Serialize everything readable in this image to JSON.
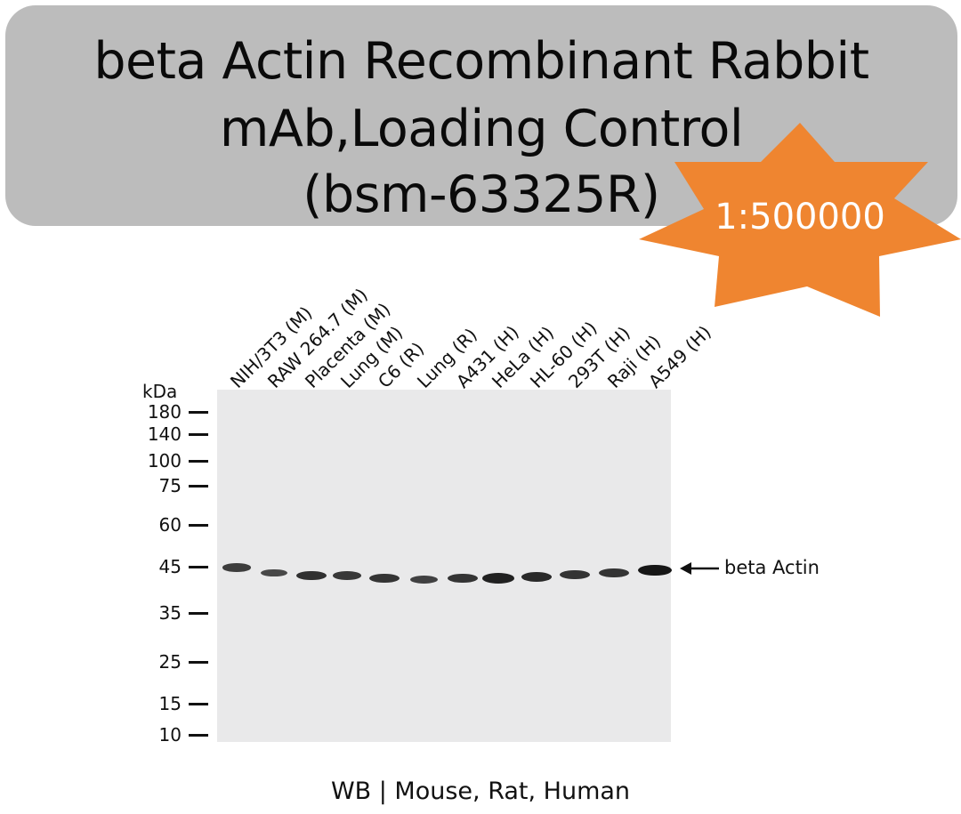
{
  "header": {
    "title_lines": [
      "beta Actin Recombinant Rabbit",
      "mAb,Loading Control",
      "(bsm-63325R)"
    ],
    "dilution": "1:500000",
    "colors": {
      "title_box": "#bcbcbc",
      "starburst": "#ef8530"
    }
  },
  "blot": {
    "unit_label": "kDa",
    "lanes": [
      "NIH/3T3 (M)",
      "RAW 264.7 (M)",
      "Placenta (M)",
      "Lung (M)",
      "C6 (R)",
      "Lung (R)",
      "A431 (H)",
      "HeLa (H)",
      "HL-60 (H)",
      "293T (H)",
      "Raji (H)",
      "A549 (H)"
    ],
    "markers": [
      "180",
      "140",
      "100",
      "75",
      "60",
      "45",
      "35",
      "25",
      "15",
      "10"
    ],
    "band_label": "beta Actin",
    "band_intensity": [
      0.55,
      0.45,
      0.7,
      0.6,
      0.65,
      0.5,
      0.65,
      0.85,
      0.75,
      0.65,
      0.65,
      0.95
    ]
  },
  "footer": {
    "text": "WB | Mouse, Rat, Human"
  }
}
